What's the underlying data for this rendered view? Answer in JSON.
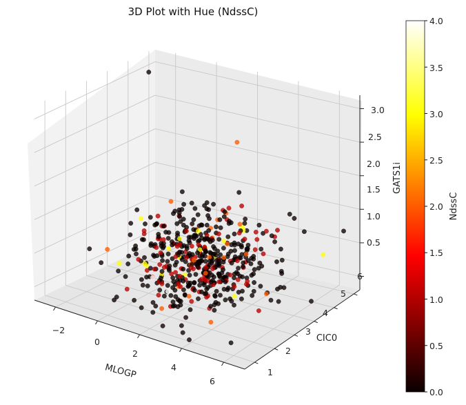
{
  "chart_data": {
    "type": "scatter",
    "projection": "3d",
    "title": "3D Plot with Hue (NdssC)",
    "xlabel": "MLOGP",
    "ylabel": "CIC0",
    "zlabel": "GATS1i",
    "xticks": [
      "−2",
      "0",
      "2",
      "4",
      "6"
    ],
    "yticks": [
      "1",
      "2",
      "3",
      "4",
      "5",
      "6"
    ],
    "zticks": [
      "0.5",
      "1.0",
      "1.5",
      "2.0",
      "2.5",
      "3.0"
    ],
    "xlim": [
      -3,
      7
    ],
    "ylim": [
      0.5,
      6.3
    ],
    "zlim": [
      0.3,
      3.2
    ],
    "hue": {
      "name": "NdssC",
      "colormap": "hot",
      "range": [
        0,
        4
      ],
      "ticks": [
        "0.0",
        "0.5",
        "1.0",
        "1.5",
        "2.0",
        "2.5",
        "3.0",
        "3.5",
        "4.0"
      ]
    },
    "grid": true,
    "point_count": 547,
    "points_note": "dense cloud centered near MLOGP≈2.5, CIC0≈3, GATS1i≈1; most NdssC=0, some 1–2, few 3–4"
  }
}
